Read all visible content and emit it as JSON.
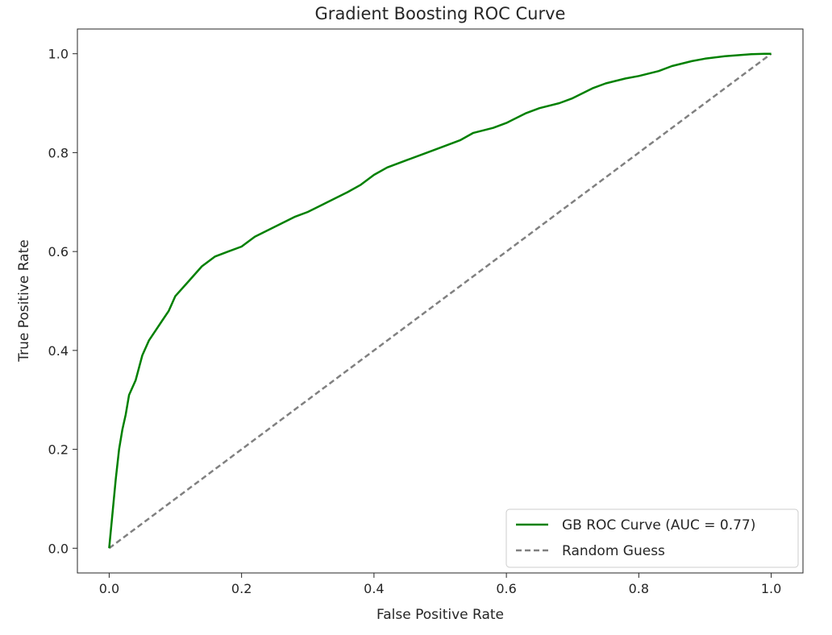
{
  "chart_data": {
    "type": "line",
    "title": "Gradient Boosting ROC Curve",
    "xlabel": "False Positive Rate",
    "ylabel": "True Positive Rate",
    "xlim": [
      -0.048,
      1.048
    ],
    "ylim": [
      -0.05,
      1.05
    ],
    "x_ticks": [
      0.0,
      0.2,
      0.4,
      0.6,
      0.8,
      1.0
    ],
    "y_ticks": [
      0.0,
      0.2,
      0.4,
      0.6,
      0.8,
      1.0
    ],
    "x_tick_labels": [
      "0.0",
      "0.2",
      "0.4",
      "0.6",
      "0.8",
      "1.0"
    ],
    "y_tick_labels": [
      "0.0",
      "0.2",
      "0.4",
      "0.6",
      "0.8",
      "1.0"
    ],
    "grid": false,
    "legend_position": "lower-right",
    "series": [
      {
        "name": "GB ROC Curve (AUC = 0.77)",
        "color": "#008000",
        "style": "solid",
        "x": [
          0.0,
          0.005,
          0.01,
          0.015,
          0.02,
          0.025,
          0.03,
          0.04,
          0.05,
          0.06,
          0.07,
          0.08,
          0.09,
          0.1,
          0.12,
          0.14,
          0.16,
          0.18,
          0.2,
          0.22,
          0.25,
          0.28,
          0.3,
          0.33,
          0.36,
          0.38,
          0.4,
          0.42,
          0.45,
          0.48,
          0.5,
          0.53,
          0.55,
          0.58,
          0.6,
          0.63,
          0.65,
          0.68,
          0.7,
          0.73,
          0.75,
          0.78,
          0.8,
          0.83,
          0.85,
          0.88,
          0.9,
          0.93,
          0.95,
          0.97,
          0.99,
          1.0
        ],
        "y": [
          0.0,
          0.07,
          0.14,
          0.2,
          0.24,
          0.27,
          0.31,
          0.34,
          0.39,
          0.42,
          0.44,
          0.46,
          0.48,
          0.51,
          0.54,
          0.57,
          0.59,
          0.6,
          0.61,
          0.63,
          0.65,
          0.67,
          0.68,
          0.7,
          0.72,
          0.735,
          0.755,
          0.77,
          0.785,
          0.8,
          0.81,
          0.825,
          0.84,
          0.85,
          0.86,
          0.88,
          0.89,
          0.9,
          0.91,
          0.93,
          0.94,
          0.95,
          0.955,
          0.965,
          0.975,
          0.985,
          0.99,
          0.995,
          0.997,
          0.999,
          1.0,
          1.0
        ]
      },
      {
        "name": "Random Guess",
        "color": "#808080",
        "style": "dashed",
        "x": [
          0.0,
          1.0
        ],
        "y": [
          0.0,
          1.0
        ]
      }
    ]
  }
}
